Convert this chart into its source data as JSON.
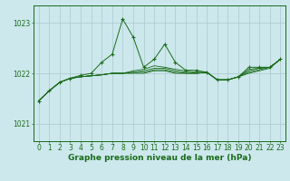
{
  "bg_color": "#cce8ec",
  "grid_color": "#aac8cc",
  "line_color": "#1a6b1a",
  "xlabel": "Graphe pression niveau de la mer (hPa)",
  "xlabel_fontsize": 6.5,
  "tick_fontsize": 5.5,
  "ylabel_ticks": [
    1021,
    1022,
    1023
  ],
  "xlim": [
    -0.5,
    23.5
  ],
  "ylim": [
    1020.65,
    1023.35
  ],
  "x": [
    0,
    1,
    2,
    3,
    4,
    5,
    6,
    7,
    8,
    9,
    10,
    11,
    12,
    13,
    14,
    15,
    16,
    17,
    18,
    19,
    20,
    21,
    22,
    23
  ],
  "main_series": [
    1021.45,
    1021.65,
    1021.82,
    1021.9,
    1021.96,
    1022.0,
    1022.22,
    1022.38,
    1023.08,
    1022.72,
    1022.12,
    1022.28,
    1022.58,
    1022.22,
    1022.06,
    1022.06,
    1022.02,
    1021.87,
    1021.87,
    1021.93,
    1022.12,
    1022.12,
    1022.12,
    1022.28
  ],
  "flat_lines": [
    [
      1021.45,
      1021.65,
      1021.82,
      1021.9,
      1021.93,
      1021.95,
      1021.97,
      1022.0,
      1022.0,
      1022.0,
      1022.0,
      1022.05,
      1022.05,
      1022.0,
      1022.0,
      1022.0,
      1022.02,
      1021.87,
      1021.87,
      1021.93,
      1022.0,
      1022.05,
      1022.1,
      1022.28
    ],
    [
      1021.45,
      1021.65,
      1021.82,
      1021.9,
      1021.93,
      1021.95,
      1021.97,
      1022.0,
      1022.0,
      1022.02,
      1022.02,
      1022.07,
      1022.07,
      1022.02,
      1022.0,
      1022.0,
      1022.02,
      1021.87,
      1021.87,
      1021.93,
      1022.02,
      1022.07,
      1022.12,
      1022.28
    ],
    [
      1021.45,
      1021.65,
      1021.82,
      1021.9,
      1021.93,
      1021.95,
      1021.97,
      1022.0,
      1022.0,
      1022.02,
      1022.05,
      1022.1,
      1022.1,
      1022.05,
      1022.02,
      1022.0,
      1022.02,
      1021.87,
      1021.87,
      1021.93,
      1022.05,
      1022.1,
      1022.12,
      1022.28
    ],
    [
      1021.45,
      1021.65,
      1021.82,
      1021.9,
      1021.93,
      1021.95,
      1021.97,
      1022.0,
      1022.0,
      1022.05,
      1022.08,
      1022.15,
      1022.12,
      1022.08,
      1022.05,
      1022.02,
      1022.02,
      1021.87,
      1021.87,
      1021.93,
      1022.08,
      1022.1,
      1022.12,
      1022.28
    ]
  ]
}
